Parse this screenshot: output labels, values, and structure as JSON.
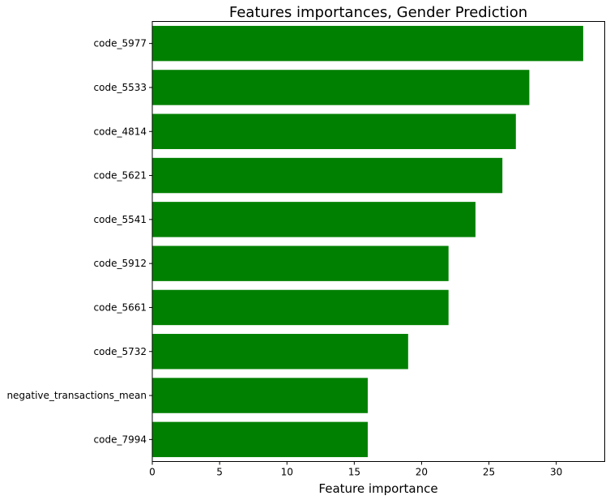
{
  "chart_data": {
    "type": "bar",
    "orientation": "horizontal",
    "title": "Features importances, Gender Prediction",
    "xlabel": "Feature importance",
    "ylabel": "",
    "categories": [
      "code_5977",
      "code_5533",
      "code_4814",
      "code_5621",
      "code_5541",
      "code_5912",
      "code_5661",
      "code_5732",
      "negative_transactions_mean",
      "code_7994"
    ],
    "values": [
      32,
      28,
      27,
      26,
      24,
      22,
      22,
      19,
      16,
      16
    ],
    "xlim": [
      0,
      33.6
    ],
    "xticks": [
      0,
      5,
      10,
      15,
      20,
      25,
      30
    ],
    "bar_color": "#008000",
    "grid": false
  }
}
